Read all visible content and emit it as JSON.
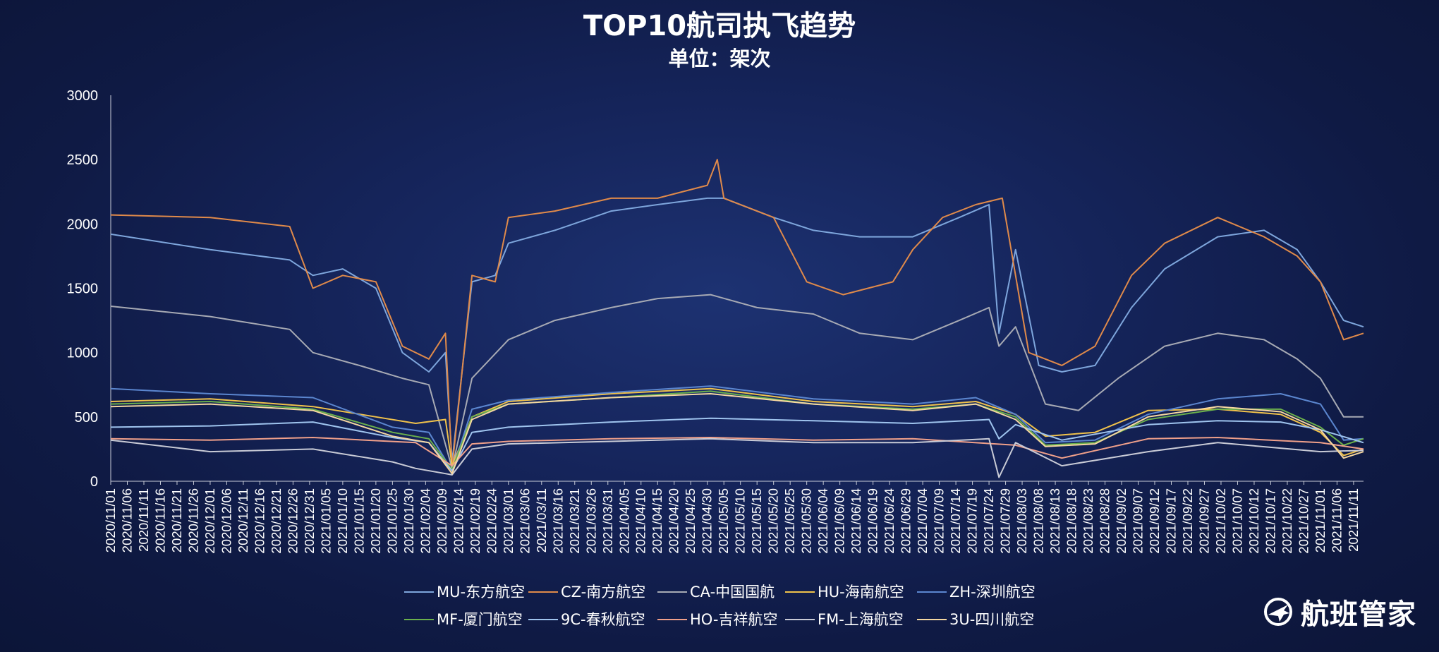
{
  "brand": {
    "name": "航班管家",
    "icon": "globe-plane-icon"
  },
  "chart_data": {
    "type": "line",
    "title": "TOP10航司执飞趋势",
    "subtitle": "单位：架次",
    "xlabel": "",
    "ylabel": "",
    "ylim": [
      0,
      3000
    ],
    "yticks": [
      "0",
      "500",
      "1000",
      "1500",
      "2000",
      "2500",
      "3000"
    ],
    "x_start": "2020/11/01",
    "x_end": "2021/11/14",
    "x_tick_labels": [
      "2020/11/01",
      "2020/11/06",
      "2020/11/11",
      "2020/11/16",
      "2020/11/21",
      "2020/11/26",
      "2020/12/01",
      "2020/12/06",
      "2020/12/11",
      "2020/12/16",
      "2020/12/21",
      "2020/12/26",
      "2020/12/31",
      "2021/01/05",
      "2021/01/10",
      "2021/01/15",
      "2021/01/20",
      "2021/01/25",
      "2021/01/30",
      "2021/02/04",
      "2021/02/09",
      "2021/02/14",
      "2021/02/19",
      "2021/02/24",
      "2021/03/01",
      "2021/03/06",
      "2021/03/11",
      "2021/03/16",
      "2021/03/21",
      "2021/03/26",
      "2021/03/31",
      "2021/04/05",
      "2021/04/10",
      "2021/04/15",
      "2021/04/20",
      "2021/04/25",
      "2021/04/30",
      "2021/05/05",
      "2021/05/10",
      "2021/05/15",
      "2021/05/20",
      "2021/05/25",
      "2021/05/30",
      "2021/06/04",
      "2021/06/09",
      "2021/06/14",
      "2021/06/19",
      "2021/06/24",
      "2021/06/29",
      "2021/07/04",
      "2021/07/09",
      "2021/07/14",
      "2021/07/19",
      "2021/07/24",
      "2021/07/29",
      "2021/08/03",
      "2021/08/08",
      "2021/08/13",
      "2021/08/18",
      "2021/08/23",
      "2021/08/28",
      "2021/09/02",
      "2021/09/07",
      "2021/09/12",
      "2021/09/17",
      "2021/09/22",
      "2021/09/27",
      "2021/10/02",
      "2021/10/07",
      "2021/10/12",
      "2021/10/17",
      "2021/10/22",
      "2021/10/27",
      "2021/11/01",
      "2021/11/06",
      "2021/11/11"
    ],
    "legend_position": "bottom",
    "series": [
      {
        "name": "MU-东方航空",
        "color": "#7ea6dc",
        "x": [
          "2020/11/01",
          "2020/12/01",
          "2020/12/25",
          "2021/01/01",
          "2021/01/10",
          "2021/01/20",
          "2021/01/28",
          "2021/02/05",
          "2021/02/10",
          "2021/02/12",
          "2021/02/18",
          "2021/02/25",
          "2021/03/01",
          "2021/03/15",
          "2021/04/01",
          "2021/04/15",
          "2021/04/30",
          "2021/05/05",
          "2021/05/20",
          "2021/06/01",
          "2021/06/15",
          "2021/07/01",
          "2021/07/15",
          "2021/07/24",
          "2021/07/27",
          "2021/08/01",
          "2021/08/08",
          "2021/08/15",
          "2021/08/25",
          "2021/09/05",
          "2021/09/15",
          "2021/10/01",
          "2021/10/15",
          "2021/10/25",
          "2021/11/01",
          "2021/11/08",
          "2021/11/14"
        ],
        "y": [
          1920,
          1800,
          1720,
          1600,
          1650,
          1500,
          1000,
          850,
          1000,
          150,
          1550,
          1600,
          1850,
          1950,
          2100,
          2150,
          2200,
          2200,
          2050,
          1950,
          1900,
          1900,
          2050,
          2150,
          1150,
          1800,
          900,
          850,
          900,
          1350,
          1650,
          1900,
          1950,
          1800,
          1550,
          1250,
          1200
        ]
      },
      {
        "name": "CZ-南方航空",
        "color": "#e08a4a",
        "x": [
          "2020/11/01",
          "2020/12/01",
          "2020/12/25",
          "2021/01/01",
          "2021/01/10",
          "2021/01/20",
          "2021/01/28",
          "2021/02/05",
          "2021/02/10",
          "2021/02/12",
          "2021/02/18",
          "2021/02/25",
          "2021/03/01",
          "2021/03/15",
          "2021/04/01",
          "2021/04/15",
          "2021/04/30",
          "2021/05/03",
          "2021/05/05",
          "2021/05/20",
          "2021/05/30",
          "2021/06/10",
          "2021/06/25",
          "2021/07/01",
          "2021/07/10",
          "2021/07/20",
          "2021/07/28",
          "2021/08/05",
          "2021/08/15",
          "2021/08/25",
          "2021/09/05",
          "2021/09/15",
          "2021/10/01",
          "2021/10/15",
          "2021/10/25",
          "2021/11/01",
          "2021/11/08",
          "2021/11/14"
        ],
        "y": [
          2070,
          2050,
          1980,
          1500,
          1600,
          1550,
          1050,
          950,
          1150,
          100,
          1600,
          1550,
          2050,
          2100,
          2200,
          2200,
          2300,
          2500,
          2200,
          2050,
          1550,
          1450,
          1550,
          1800,
          2050,
          2150,
          2200,
          1000,
          900,
          1050,
          1600,
          1850,
          2050,
          1900,
          1750,
          1550,
          1100,
          1150
        ]
      },
      {
        "name": "CA-中国国航",
        "color": "#a7aab4",
        "x": [
          "2020/11/01",
          "2020/12/01",
          "2020/12/25",
          "2021/01/01",
          "2021/01/15",
          "2021/01/28",
          "2021/02/05",
          "2021/02/12",
          "2021/02/18",
          "2021/03/01",
          "2021/03/15",
          "2021/04/01",
          "2021/04/15",
          "2021/05/01",
          "2021/05/15",
          "2021/06/01",
          "2021/06/15",
          "2021/07/01",
          "2021/07/15",
          "2021/07/24",
          "2021/07/27",
          "2021/08/01",
          "2021/08/10",
          "2021/08/20",
          "2021/09/01",
          "2021/09/15",
          "2021/10/01",
          "2021/10/15",
          "2021/10/25",
          "2021/11/01",
          "2021/11/08",
          "2021/11/14"
        ],
        "y": [
          1360,
          1280,
          1180,
          1000,
          900,
          800,
          750,
          100,
          800,
          1100,
          1250,
          1350,
          1420,
          1450,
          1350,
          1300,
          1150,
          1100,
          1250,
          1350,
          1050,
          1200,
          600,
          550,
          800,
          1050,
          1150,
          1100,
          950,
          800,
          500,
          500
        ]
      },
      {
        "name": "HU-海南航空",
        "color": "#f0c24b",
        "x": [
          "2020/11/01",
          "2020/12/01",
          "2021/01/01",
          "2021/01/20",
          "2021/02/01",
          "2021/02/10",
          "2021/02/12",
          "2021/02/18",
          "2021/03/01",
          "2021/04/01",
          "2021/05/01",
          "2021/06/01",
          "2021/07/01",
          "2021/07/20",
          "2021/08/01",
          "2021/08/10",
          "2021/08/25",
          "2021/09/10",
          "2021/10/01",
          "2021/10/20",
          "2021/11/01",
          "2021/11/08",
          "2021/11/14"
        ],
        "y": [
          620,
          640,
          580,
          500,
          450,
          480,
          120,
          500,
          620,
          680,
          720,
          620,
          580,
          620,
          520,
          350,
          380,
          550,
          560,
          520,
          380,
          200,
          250
        ]
      },
      {
        "name": "ZH-深圳航空",
        "color": "#5b86cf",
        "x": [
          "2020/11/01",
          "2020/12/01",
          "2021/01/01",
          "2021/01/25",
          "2021/02/05",
          "2021/02/12",
          "2021/02/18",
          "2021/03/01",
          "2021/04/01",
          "2021/05/01",
          "2021/06/01",
          "2021/07/01",
          "2021/07/20",
          "2021/08/01",
          "2021/08/10",
          "2021/08/25",
          "2021/09/10",
          "2021/10/01",
          "2021/10/20",
          "2021/11/01",
          "2021/11/08",
          "2021/11/14"
        ],
        "y": [
          720,
          680,
          650,
          420,
          380,
          80,
          560,
          630,
          690,
          740,
          640,
          600,
          650,
          520,
          300,
          320,
          520,
          640,
          680,
          600,
          320,
          330
        ]
      },
      {
        "name": "MF-厦门航空",
        "color": "#6bb04c",
        "x": [
          "2020/11/01",
          "2020/12/01",
          "2021/01/01",
          "2021/01/25",
          "2021/02/05",
          "2021/02/12",
          "2021/02/18",
          "2021/03/01",
          "2021/04/01",
          "2021/05/01",
          "2021/06/01",
          "2021/07/01",
          "2021/07/20",
          "2021/08/01",
          "2021/08/10",
          "2021/08/25",
          "2021/09/10",
          "2021/10/01",
          "2021/10/20",
          "2021/11/01",
          "2021/11/08",
          "2021/11/14"
        ],
        "y": [
          600,
          620,
          560,
          380,
          330,
          90,
          500,
          600,
          650,
          700,
          600,
          560,
          600,
          500,
          280,
          300,
          480,
          560,
          560,
          420,
          280,
          330
        ]
      },
      {
        "name": "9C-春秋航空",
        "color": "#9fc4ee",
        "x": [
          "2020/11/01",
          "2020/12/01",
          "2021/01/01",
          "2021/01/25",
          "2021/02/05",
          "2021/02/12",
          "2021/02/18",
          "2021/03/01",
          "2021/04/01",
          "2021/05/01",
          "2021/06/01",
          "2021/07/01",
          "2021/07/24",
          "2021/07/27",
          "2021/08/01",
          "2021/08/15",
          "2021/09/10",
          "2021/10/01",
          "2021/10/20",
          "2021/11/01",
          "2021/11/14"
        ],
        "y": [
          420,
          430,
          460,
          340,
          300,
          80,
          380,
          420,
          460,
          490,
          470,
          450,
          480,
          330,
          440,
          320,
          440,
          470,
          460,
          400,
          300
        ]
      },
      {
        "name": "HO-吉祥航空",
        "color": "#f0a08a",
        "x": [
          "2020/11/01",
          "2020/12/01",
          "2021/01/01",
          "2021/02/01",
          "2021/02/12",
          "2021/02/18",
          "2021/03/01",
          "2021/04/01",
          "2021/05/01",
          "2021/06/01",
          "2021/07/01",
          "2021/08/01",
          "2021/08/15",
          "2021/09/10",
          "2021/10/01",
          "2021/11/01",
          "2021/11/14"
        ],
        "y": [
          330,
          320,
          340,
          300,
          120,
          290,
          310,
          330,
          340,
          320,
          330,
          280,
          180,
          330,
          340,
          300,
          250
        ]
      },
      {
        "name": "FM-上海航空",
        "color": "#c9cbd6",
        "x": [
          "2020/11/01",
          "2020/12/01",
          "2021/01/01",
          "2021/01/25",
          "2021/02/01",
          "2021/02/12",
          "2021/02/18",
          "2021/03/01",
          "2021/04/01",
          "2021/05/01",
          "2021/06/01",
          "2021/07/01",
          "2021/07/24",
          "2021/07/27",
          "2021/08/01",
          "2021/08/15",
          "2021/09/10",
          "2021/10/01",
          "2021/11/01",
          "2021/11/14"
        ],
        "y": [
          320,
          230,
          250,
          150,
          100,
          50,
          250,
          290,
          310,
          330,
          300,
          300,
          330,
          30,
          300,
          120,
          230,
          300,
          230,
          240
        ]
      },
      {
        "name": "3U-四川航空",
        "color": "#f5d7a1",
        "x": [
          "2020/11/01",
          "2020/12/01",
          "2021/01/01",
          "2021/01/25",
          "2021/02/05",
          "2021/02/12",
          "2021/02/18",
          "2021/03/01",
          "2021/04/01",
          "2021/05/01",
          "2021/06/01",
          "2021/07/01",
          "2021/07/20",
          "2021/08/01",
          "2021/08/10",
          "2021/08/25",
          "2021/09/10",
          "2021/10/01",
          "2021/10/20",
          "2021/11/01",
          "2021/11/08",
          "2021/11/14"
        ],
        "y": [
          580,
          600,
          550,
          350,
          300,
          60,
          480,
          600,
          650,
          680,
          600,
          550,
          600,
          480,
          270,
          290,
          500,
          580,
          540,
          400,
          180,
          230
        ]
      }
    ]
  }
}
